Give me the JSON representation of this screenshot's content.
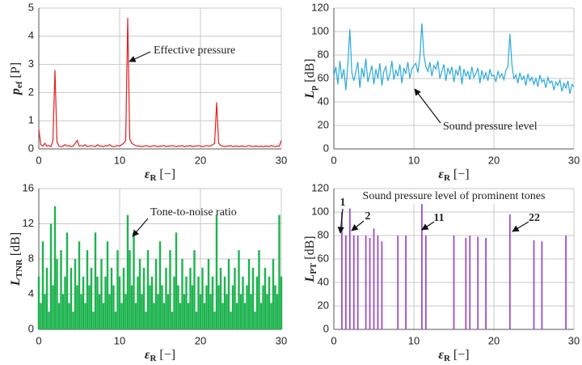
{
  "chart_data": [
    {
      "type": "line",
      "color": "#e02020",
      "ylabel": {
        "main": "p",
        "sub": "ef",
        "unit": " [P]"
      },
      "xlabel": {
        "main": "ε",
        "sub": "R",
        "unit": " [−]"
      },
      "xlim": [
        0,
        30
      ],
      "xticks": [
        0,
        10,
        20,
        30
      ],
      "ylim": [
        0,
        5
      ],
      "yticks": [
        0,
        1,
        2,
        3,
        4,
        5
      ],
      "grid": true,
      "annotations": [
        {
          "text": "Effective pressure"
        }
      ],
      "x": [
        0,
        0.25,
        0.5,
        0.75,
        1,
        1.25,
        1.5,
        1.75,
        2,
        2.25,
        2.5,
        2.75,
        3,
        3.25,
        3.5,
        3.75,
        4,
        4.25,
        4.5,
        4.75,
        5,
        5.25,
        5.5,
        5.75,
        6,
        6.25,
        6.5,
        6.75,
        7,
        7.25,
        7.5,
        7.75,
        8,
        8.25,
        8.5,
        8.75,
        9,
        9.25,
        9.5,
        9.75,
        10,
        10.25,
        10.5,
        10.75,
        11,
        11.25,
        11.5,
        11.75,
        12,
        12.25,
        12.5,
        12.75,
        13,
        13.25,
        13.5,
        13.75,
        14,
        14.25,
        14.5,
        14.75,
        15,
        15.25,
        15.5,
        15.75,
        16,
        16.25,
        16.5,
        16.75,
        17,
        17.25,
        17.5,
        17.75,
        18,
        18.25,
        18.5,
        18.75,
        19,
        19.25,
        19.5,
        19.75,
        20,
        20.25,
        20.5,
        20.75,
        21,
        21.25,
        21.5,
        21.75,
        22,
        22.25,
        22.5,
        22.75,
        23,
        23.25,
        23.5,
        23.75,
        24,
        24.25,
        24.5,
        24.75,
        25,
        25.25,
        25.5,
        25.75,
        26,
        26.25,
        26.5,
        26.75,
        27,
        27.25,
        27.5,
        27.75,
        28,
        28.25,
        28.5,
        28.75,
        29,
        29.25,
        29.5,
        29.75,
        30
      ],
      "values": [
        0.7,
        0.15,
        0.1,
        0.2,
        0.1,
        0.12,
        0.08,
        0.3,
        2.8,
        0.25,
        0.1,
        0.08,
        0.1,
        0.15,
        0.1,
        0.12,
        0.08,
        0.1,
        0.2,
        0.3,
        0.1,
        0.12,
        0.1,
        0.15,
        0.08,
        0.1,
        0.12,
        0.1,
        0.08,
        0.15,
        0.1,
        0.1,
        0.08,
        0.12,
        0.1,
        0.15,
        0.1,
        0.08,
        0.1,
        0.12,
        0.1,
        0.15,
        0.2,
        0.3,
        4.65,
        0.35,
        0.2,
        0.15,
        0.12,
        0.1,
        0.1,
        0.08,
        0.1,
        0.12,
        0.1,
        0.08,
        0.1,
        0.12,
        0.1,
        0.08,
        0.1,
        0.1,
        0.12,
        0.08,
        0.1,
        0.1,
        0.12,
        0.1,
        0.08,
        0.1,
        0.1,
        0.12,
        0.08,
        0.1,
        0.1,
        0.12,
        0.08,
        0.1,
        0.1,
        0.12,
        0.1,
        0.08,
        0.1,
        0.12,
        0.1,
        0.1,
        0.15,
        0.2,
        1.65,
        0.2,
        0.12,
        0.1,
        0.08,
        0.1,
        0.1,
        0.12,
        0.08,
        0.1,
        0.1,
        0.08,
        0.1,
        0.1,
        0.08,
        0.1,
        0.12,
        0.1,
        0.08,
        0.1,
        0.1,
        0.08,
        0.1,
        0.08,
        0.1,
        0.1,
        0.08,
        0.12,
        0.1,
        0.08,
        0.1,
        0.1,
        0.3
      ]
    },
    {
      "type": "line",
      "color": "#29a9e0",
      "ylabel": {
        "main": "L",
        "sub": "p",
        "unit": " [dB]"
      },
      "xlabel": {
        "main": "ε",
        "sub": "R",
        "unit": " [−]"
      },
      "xlim": [
        0,
        30
      ],
      "xticks": [
        0,
        10,
        20,
        30
      ],
      "ylim": [
        0,
        120
      ],
      "yticks": [
        0,
        20,
        40,
        60,
        80,
        100,
        120
      ],
      "grid": true,
      "annotations": [
        {
          "text": "Sound pressure level"
        }
      ],
      "x": [
        0,
        0.25,
        0.5,
        0.75,
        1,
        1.25,
        1.5,
        1.75,
        2,
        2.25,
        2.5,
        2.75,
        3,
        3.25,
        3.5,
        3.75,
        4,
        4.25,
        4.5,
        4.75,
        5,
        5.25,
        5.5,
        5.75,
        6,
        6.25,
        6.5,
        6.75,
        7,
        7.25,
        7.5,
        7.75,
        8,
        8.25,
        8.5,
        8.75,
        9,
        9.25,
        9.5,
        9.75,
        10,
        10.25,
        10.5,
        10.75,
        11,
        11.25,
        11.5,
        11.75,
        12,
        12.25,
        12.5,
        12.75,
        13,
        13.25,
        13.5,
        13.75,
        14,
        14.25,
        14.5,
        14.75,
        15,
        15.25,
        15.5,
        15.75,
        16,
        16.25,
        16.5,
        16.75,
        17,
        17.25,
        17.5,
        17.75,
        18,
        18.25,
        18.5,
        18.75,
        19,
        19.25,
        19.5,
        19.75,
        20,
        20.25,
        20.5,
        20.75,
        21,
        21.25,
        21.5,
        21.75,
        22,
        22.25,
        22.5,
        22.75,
        23,
        23.25,
        23.5,
        23.75,
        24,
        24.25,
        24.5,
        24.75,
        25,
        25.25,
        25.5,
        25.75,
        26,
        26.25,
        26.5,
        26.75,
        27,
        27.25,
        27.5,
        27.75,
        28,
        28.25,
        28.5,
        28.75,
        29,
        29.25,
        29.5,
        29.75,
        30
      ],
      "values": [
        62,
        70,
        55,
        75,
        60,
        68,
        50,
        72,
        102,
        65,
        58,
        66,
        74,
        52,
        69,
        61,
        77,
        57,
        64,
        71,
        55,
        68,
        60,
        73,
        54,
        66,
        70,
        58,
        63,
        75,
        59,
        67,
        62,
        72,
        56,
        69,
        64,
        74,
        60,
        68,
        71,
        73,
        65,
        78,
        107,
        80,
        70,
        66,
        74,
        62,
        71,
        68,
        75,
        60,
        66,
        72,
        58,
        69,
        64,
        70,
        57,
        67,
        63,
        71,
        55,
        68,
        62,
        66,
        59,
        70,
        61,
        64,
        69,
        56,
        67,
        60,
        65,
        58,
        68,
        62,
        63,
        57,
        66,
        61,
        64,
        59,
        67,
        70,
        98,
        72,
        60,
        63,
        56,
        65,
        59,
        62,
        54,
        64,
        58,
        61,
        55,
        60,
        53,
        63,
        57,
        59,
        52,
        61,
        56,
        58,
        50,
        57,
        54,
        59,
        49,
        56,
        52,
        58,
        47,
        55,
        53
      ]
    },
    {
      "type": "bar",
      "color": "#1db34e",
      "ylabel": {
        "main": "L",
        "sub": "TNR",
        "unit": " [dB]"
      },
      "xlabel": {
        "main": "ε",
        "sub": "R",
        "unit": " [−]"
      },
      "xlim": [
        0,
        30
      ],
      "xticks": [
        0,
        10,
        20,
        30
      ],
      "ylim": [
        0,
        16
      ],
      "yticks": [
        0,
        4,
        8,
        12,
        16
      ],
      "grid": true,
      "annotations": [
        {
          "text": "Tone-to-noise ratio"
        }
      ],
      "x": [
        0,
        0.25,
        0.5,
        0.75,
        1,
        1.25,
        1.5,
        1.75,
        2,
        2.25,
        2.5,
        2.75,
        3,
        3.25,
        3.5,
        3.75,
        4,
        4.25,
        4.5,
        4.75,
        5,
        5.25,
        5.5,
        5.75,
        6,
        6.25,
        6.5,
        6.75,
        7,
        7.25,
        7.5,
        7.75,
        8,
        8.25,
        8.5,
        8.75,
        9,
        9.25,
        9.5,
        9.75,
        10,
        10.25,
        10.5,
        10.75,
        11,
        11.25,
        11.5,
        11.75,
        12,
        12.25,
        12.5,
        12.75,
        13,
        13.25,
        13.5,
        13.75,
        14,
        14.25,
        14.5,
        14.75,
        15,
        15.25,
        15.5,
        15.75,
        16,
        16.25,
        16.5,
        16.75,
        17,
        17.25,
        17.5,
        17.75,
        18,
        18.25,
        18.5,
        18.75,
        19,
        19.25,
        19.5,
        19.75,
        20,
        20.25,
        20.5,
        20.75,
        21,
        21.25,
        21.5,
        21.75,
        22,
        22.25,
        22.5,
        22.75,
        23,
        23.25,
        23.5,
        23.75,
        24,
        24.25,
        24.5,
        24.75,
        25,
        25.25,
        25.5,
        25.75,
        26,
        26.25,
        26.5,
        26.75,
        27,
        27.25,
        27.5,
        27.75,
        28,
        28.25,
        28.5,
        28.75,
        29,
        29.25,
        29.5,
        29.75,
        30
      ],
      "values": [
        6,
        3,
        10,
        4,
        7,
        2,
        12,
        5,
        14,
        8,
        3,
        9,
        4,
        6,
        11,
        3,
        7,
        2,
        8,
        5,
        10,
        4,
        6,
        3,
        9,
        5,
        7,
        2,
        11,
        6,
        4,
        8,
        3,
        6,
        10,
        4,
        7,
        5,
        2,
        9,
        6,
        3,
        7,
        4,
        13,
        9,
        5,
        11,
        3,
        6,
        8,
        4,
        7,
        2,
        9,
        5,
        6,
        3,
        8,
        4,
        10,
        5,
        3,
        7,
        4,
        9,
        2,
        6,
        11,
        5,
        3,
        8,
        4,
        6,
        3,
        7,
        5,
        9,
        2,
        6,
        4,
        7,
        3,
        5,
        8,
        4,
        6,
        2,
        13,
        5,
        7,
        3,
        6,
        4,
        8,
        2,
        5,
        7,
        3,
        9,
        4,
        6,
        3,
        5,
        8,
        4,
        7,
        2,
        6,
        9,
        3,
        5,
        7,
        4,
        6,
        3,
        8,
        5,
        4,
        13,
        6
      ]
    },
    {
      "type": "bar",
      "color": "#9b4fc9",
      "title": "Sound pressure level of prominent tones",
      "ylabel": {
        "main": "L",
        "sub": "PT",
        "unit": " [dB]"
      },
      "xlabel": {
        "main": "ε",
        "sub": "R",
        "unit": " [−]"
      },
      "xlim": [
        0,
        30
      ],
      "xticks": [
        0,
        10,
        20,
        30
      ],
      "ylim": [
        0,
        120
      ],
      "yticks": [
        0,
        20,
        40,
        60,
        80,
        100,
        120
      ],
      "grid": true,
      "annotations": [
        {
          "text": "1"
        },
        {
          "text": "2"
        },
        {
          "text": "11"
        },
        {
          "text": "22"
        }
      ],
      "x": [
        1,
        1.5,
        2,
        2.5,
        3,
        4,
        4.5,
        5,
        5.5,
        6,
        8,
        9,
        11,
        11.5,
        15,
        16.5,
        17,
        18,
        19,
        22,
        25,
        26,
        29
      ],
      "values": [
        100,
        80,
        103,
        80,
        80,
        80,
        78,
        86,
        80,
        75,
        80,
        80,
        107,
        80,
        80,
        78,
        80,
        79,
        78,
        98,
        76,
        75,
        80
      ]
    }
  ]
}
